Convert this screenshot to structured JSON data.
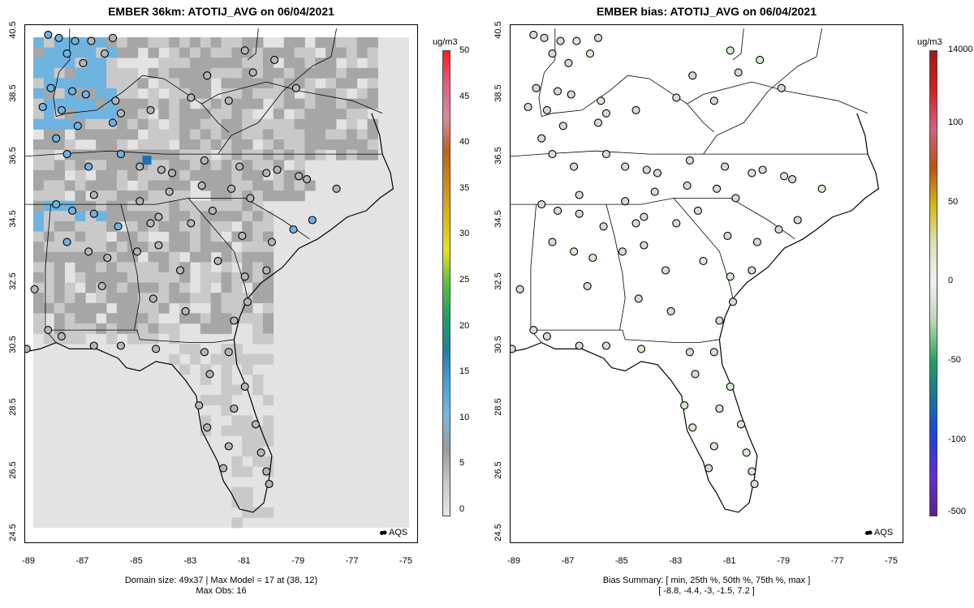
{
  "left_panel": {
    "title": "EMBER 36km: ATOTIJ_AVG on 06/04/2021",
    "footer_line1": "Domain size: 49x37 | Max Model = 17 at (38, 12)",
    "footer_line2": "Max Obs: 16",
    "legend_unit": "ug/m3",
    "legend_ticks": [
      "50",
      "45",
      "40",
      "35",
      "30",
      "25",
      "20",
      "15",
      "10",
      "5",
      "0"
    ],
    "legend_colors": [
      "#ff1a1a",
      "#e06080",
      "#d98aa0",
      "#c06020",
      "#d08a1a",
      "#d6b81a",
      "#e6e020",
      "#5cc040",
      "#20a060",
      "#1a80a0",
      "#4a9ee0",
      "#7ab8e0",
      "#9a9a9a",
      "#c8c8c8",
      "#e6e6e6"
    ],
    "legend_label": "AQS"
  },
  "right_panel": {
    "title": "EMBER bias: ATOTIJ_AVG on 06/04/2021",
    "footer_line1": "Bias Summary: [ min, 25th %, 50th %, 75th %, max ]",
    "footer_line2": "[ -8.8,   -4.4,   -3,   -1.5,   7.2 ]",
    "legend_unit": "ug/m3",
    "legend_ticks": [
      "14000",
      "100",
      "50",
      "0",
      "-50",
      "-100",
      "-500"
    ],
    "legend_label": "AQS"
  },
  "axes": {
    "y_ticks": [
      "40.5",
      "38.5",
      "36.5",
      "34.5",
      "32.5",
      "30.5",
      "28.5",
      "26.5",
      "24.5"
    ],
    "x_ticks": [
      "-89",
      "-87",
      "-85",
      "-83",
      "-81",
      "-79",
      "-77",
      "-75"
    ]
  },
  "colors": {
    "grid_light": "#e3e3e3",
    "grid_mid": "#c9c9c9",
    "grid_dark": "#a6a6a6",
    "blue_cell": "#6fb3e0",
    "dark_blue_cell": "#1a73b8",
    "dot_fill_gray": "#b5b5b5",
    "dot_fill_blue": "#6fb3e0",
    "bias_dot": "#d9d9d9",
    "bias_dot_green": "#d6ead0"
  }
}
